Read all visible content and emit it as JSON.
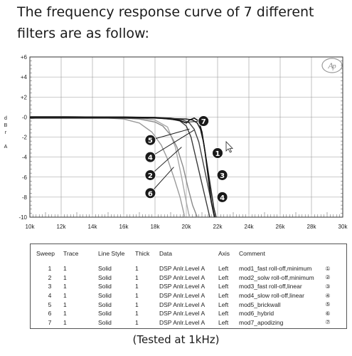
{
  "intro_text": "The frequency response curve of 7 different filters are as follow:",
  "footer_text": "(Tested at 1kHz)",
  "logo_text": "AP",
  "chart_data": {
    "type": "line",
    "title": "",
    "xlabel": "",
    "ylabel": "d B r   A",
    "xlim": [
      10000,
      30000
    ],
    "ylim": [
      -10,
      6
    ],
    "x_ticks": [
      "10k",
      "12k",
      "14k",
      "16k",
      "18k",
      "20k",
      "22k",
      "24k",
      "26k",
      "28k",
      "30k"
    ],
    "y_ticks": [
      "+6",
      "+4",
      "+2",
      "-0",
      "-2",
      "-4",
      "-6",
      "-8",
      "-10"
    ],
    "grid": true,
    "legend": "table-below",
    "series": [
      {
        "name": "1",
        "color": "#2a2a2a",
        "x": [
          10000,
          12000,
          14000,
          16000,
          18000,
          19000,
          20000,
          20400,
          20700,
          20900,
          21100,
          21300,
          21450,
          21600,
          21750,
          21900
        ],
        "y": [
          -0.1,
          -0.1,
          -0.1,
          -0.1,
          -0.1,
          -0.15,
          -0.2,
          -0.3,
          -0.6,
          -1.2,
          -2.5,
          -4.5,
          -6.0,
          -7.5,
          -9.0,
          -10
        ]
      },
      {
        "name": "2",
        "color": "#8a8a8a",
        "x": [
          10000,
          12000,
          14000,
          16000,
          17000,
          18000,
          18500,
          19000,
          19400,
          19800,
          20100,
          20400,
          20700
        ],
        "y": [
          0.05,
          0.05,
          0.0,
          -0.1,
          -0.2,
          -0.5,
          -0.9,
          -1.8,
          -3.0,
          -5.0,
          -7.0,
          -8.8,
          -10
        ]
      },
      {
        "name": "3",
        "color": "#3a3a3a",
        "x": [
          10000,
          12000,
          14000,
          16000,
          18000,
          19000,
          19600,
          20000,
          20300,
          20600,
          20900,
          21200,
          21500
        ],
        "y": [
          0.0,
          0.0,
          0.0,
          -0.05,
          -0.1,
          -0.2,
          -0.4,
          -0.9,
          -2.0,
          -4.0,
          -6.0,
          -8.0,
          -10
        ]
      },
      {
        "name": "4",
        "color": "#444444",
        "x": [
          10000,
          12000,
          14000,
          16000,
          18000,
          19000,
          19800,
          20200,
          20500,
          20800,
          21000,
          21200,
          21400,
          21600,
          21800
        ],
        "y": [
          0.0,
          0.0,
          0.0,
          0.0,
          -0.05,
          -0.1,
          -0.3,
          -0.6,
          -1.2,
          -2.5,
          -4.0,
          -5.5,
          -7.0,
          -8.5,
          -10
        ]
      },
      {
        "name": "5",
        "color": "#a8a8a8",
        "x": [
          10000,
          11000,
          12000,
          13000,
          14000,
          15000,
          16000,
          17000,
          18000,
          18800,
          19300,
          19700,
          20000,
          20200
        ],
        "y": [
          -0.15,
          0.0,
          -0.1,
          0.0,
          -0.1,
          0.0,
          -0.1,
          -0.1,
          -0.3,
          -1.0,
          -3.0,
          -6.0,
          -8.5,
          -10
        ]
      },
      {
        "name": "6",
        "color": "#9a9a9a",
        "x": [
          10000,
          12000,
          14000,
          16000,
          17000,
          17800,
          18400,
          18800,
          19200,
          19600,
          19900
        ],
        "y": [
          0.05,
          0.05,
          0.0,
          -0.2,
          -0.6,
          -1.5,
          -2.8,
          -4.2,
          -6.0,
          -8.0,
          -10
        ]
      },
      {
        "name": "7",
        "color": "#111111",
        "x": [
          10000,
          12000,
          14000,
          16000,
          18000,
          19500,
          20000,
          20200,
          20500,
          20800,
          21000,
          21200,
          21400,
          21600,
          21800
        ],
        "y": [
          0.0,
          0.0,
          0.0,
          0.0,
          -0.05,
          -0.3,
          -0.6,
          -0.3,
          -0.1,
          -0.4,
          -1.5,
          -3.5,
          -6.0,
          -8.5,
          -10
        ]
      }
    ],
    "callouts": [
      {
        "label": "1",
        "x": 22000,
        "y": -3.6
      },
      {
        "label": "2",
        "x": 17700,
        "y": -5.8
      },
      {
        "label": "3",
        "x": 22300,
        "y": -5.8
      },
      {
        "label": "4",
        "x": 17700,
        "y": -4.0
      },
      {
        "label": "4",
        "x": 22300,
        "y": -8.0
      },
      {
        "label": "5",
        "x": 17700,
        "y": -2.3
      },
      {
        "label": "6",
        "x": 17700,
        "y": -7.6
      },
      {
        "label": "7",
        "x": 21100,
        "y": -0.4
      }
    ]
  },
  "sweep_table": {
    "headers": [
      "Sweep",
      "Trace",
      "Line Style",
      "Thick",
      "Data",
      "Axis",
      "Comment"
    ],
    "rows": [
      {
        "sweep": "1",
        "trace": "1",
        "style": "Solid",
        "thick": "1",
        "data": "DSP Anlr.Level A",
        "axis": "Left",
        "comment": "mod1_fast roll-off,minimum",
        "mark": "①"
      },
      {
        "sweep": "2",
        "trace": "1",
        "style": "Solid",
        "thick": "1",
        "data": "DSP Anlr.Level A",
        "axis": "Left",
        "comment": "mod2_solw roll-off,minimum",
        "mark": "②"
      },
      {
        "sweep": "3",
        "trace": "1",
        "style": "Solid",
        "thick": "1",
        "data": "DSP Anlr.Level A",
        "axis": "Left",
        "comment": "mod3_fast roll-off,linear",
        "mark": "③"
      },
      {
        "sweep": "4",
        "trace": "1",
        "style": "Solid",
        "thick": "1",
        "data": "DSP Anlr.Level A",
        "axis": "Left",
        "comment": "mod4_slow roll-off,linear",
        "mark": "④"
      },
      {
        "sweep": "5",
        "trace": "1",
        "style": "Solid",
        "thick": "1",
        "data": "DSP Anlr.Level A",
        "axis": "Left",
        "comment": "mod5_brickwall",
        "mark": "⑤"
      },
      {
        "sweep": "6",
        "trace": "1",
        "style": "Solid",
        "thick": "1",
        "data": "DSP Anlr.Level A",
        "axis": "Left",
        "comment": "mod6_hybrid",
        "mark": "⑥"
      },
      {
        "sweep": "7",
        "trace": "1",
        "style": "Solid",
        "thick": "1",
        "data": "DSP Anlr.Level A",
        "axis": "Left",
        "comment": "mod7_apodizing",
        "mark": "⑦"
      }
    ]
  }
}
